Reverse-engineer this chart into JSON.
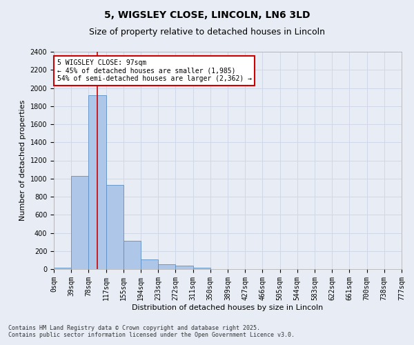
{
  "title": "5, WIGSLEY CLOSE, LINCOLN, LN6 3LD",
  "subtitle": "Size of property relative to detached houses in Lincoln",
  "xlabel": "Distribution of detached houses by size in Lincoln",
  "ylabel": "Number of detached properties",
  "bar_values": [
    15,
    1030,
    1920,
    930,
    310,
    110,
    55,
    35,
    15,
    0,
    0,
    0,
    0,
    0,
    0,
    0,
    0,
    0,
    0,
    0
  ],
  "categories": [
    "0sqm",
    "39sqm",
    "78sqm",
    "117sqm",
    "155sqm",
    "194sqm",
    "233sqm",
    "272sqm",
    "311sqm",
    "350sqm",
    "389sqm",
    "427sqm",
    "466sqm",
    "505sqm",
    "544sqm",
    "583sqm",
    "622sqm",
    "661sqm",
    "700sqm",
    "738sqm",
    "777sqm"
  ],
  "bar_color": "#aec6e8",
  "bar_edge_color": "#5a8fc4",
  "grid_color": "#d0d8e8",
  "background_color": "#e8edf5",
  "ylim": [
    0,
    2400
  ],
  "yticks": [
    0,
    200,
    400,
    600,
    800,
    1000,
    1200,
    1400,
    1600,
    1800,
    2000,
    2200,
    2400
  ],
  "property_sqm": 97,
  "annotation_text": "5 WIGSLEY CLOSE: 97sqm\n← 45% of detached houses are smaller (1,985)\n54% of semi-detached houses are larger (2,362) →",
  "annotation_box_color": "#cc0000",
  "footer_line1": "Contains HM Land Registry data © Crown copyright and database right 2025.",
  "footer_line2": "Contains public sector information licensed under the Open Government Licence v3.0.",
  "title_fontsize": 10,
  "subtitle_fontsize": 9,
  "tick_fontsize": 7,
  "ylabel_fontsize": 8,
  "xlabel_fontsize": 8,
  "annotation_fontsize": 7,
  "footer_fontsize": 6
}
